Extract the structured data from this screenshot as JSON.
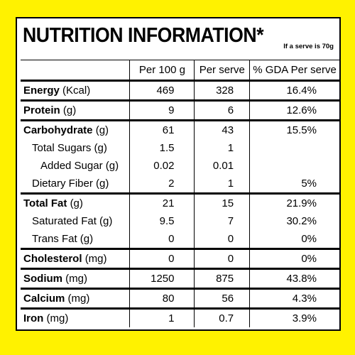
{
  "header": {
    "title": "NUTRITION INFORMATION*",
    "note": "If a serve is 70g"
  },
  "table": {
    "columns": [
      "Per 100 g",
      "Per serve",
      "% GDA Per serve"
    ],
    "groups": [
      {
        "rows": [
          {
            "name": "Energy",
            "unit": "(Kcal)",
            "per100": "469",
            "serve": "328",
            "gda": "16.4%"
          }
        ]
      },
      {
        "rows": [
          {
            "name": "Protein",
            "unit": "(g)",
            "per100": "9",
            "serve": "6",
            "gda": "12.6%"
          }
        ]
      },
      {
        "rows": [
          {
            "name": "Carbohydrate",
            "unit": "(g)",
            "per100": "61",
            "serve": "43",
            "gda": "15.5%",
            "sub": [
              {
                "name": "Total Sugars (g)",
                "per100": "1.5",
                "serve": "1",
                "sub": [
                  {
                    "name": "Added Sugar (g)",
                    "per100": "0.02",
                    "serve": "0.01"
                  }
                ]
              },
              {
                "name": "Dietary Fiber (g)",
                "per100": "2",
                "serve": "1",
                "gda": "5%"
              }
            ]
          }
        ]
      },
      {
        "rows": [
          {
            "name": "Total Fat",
            "unit": "(g)",
            "per100": "21",
            "serve": "15",
            "gda": "21.9%",
            "sub": [
              {
                "name": "Saturated Fat (g)",
                "per100": "9.5",
                "serve": "7",
                "gda": "30.2%"
              },
              {
                "name": "Trans Fat (g)",
                "per100": "0",
                "serve": "0",
                "gda": "0%"
              }
            ]
          }
        ]
      },
      {
        "rows": [
          {
            "name": "Cholesterol",
            "unit": "(mg)",
            "per100": "0",
            "serve": "0",
            "gda": "0%"
          }
        ]
      },
      {
        "rows": [
          {
            "name": "Sodium",
            "unit": "(mg)",
            "per100": "1250",
            "serve": "875",
            "gda": "43.8%"
          }
        ]
      },
      {
        "rows": [
          {
            "name": "Calcium",
            "unit": "(mg)",
            "per100": "80",
            "serve": "56",
            "gda": "4.3%"
          }
        ]
      },
      {
        "rows": [
          {
            "name": "Iron",
            "unit": "(mg)",
            "per100": "1",
            "serve": "0.7",
            "gda": "3.9%"
          }
        ]
      }
    ]
  }
}
